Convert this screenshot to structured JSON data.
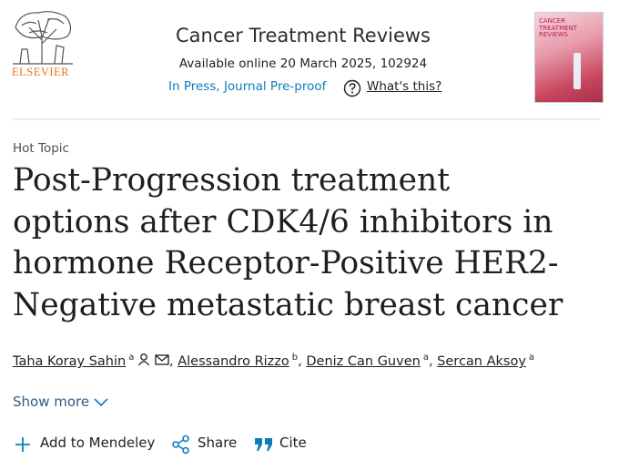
{
  "header": {
    "publisher": "ELSEVIER",
    "journal": "Cancer Treatment Reviews",
    "available": "Available online 20 March 2025, 102924",
    "status": "In Press, Journal Pre-proof",
    "whats_this": "What's this?",
    "cover_title": [
      "CANCER",
      "TREATMENT",
      "REVIEWS"
    ]
  },
  "article": {
    "type": "Hot Topic",
    "title": "Post-Progression treatment options after CDK4/6 inhibitors in hormone Receptor-Positive HER2-Negative metastatic breast cancer",
    "authors": [
      {
        "name": "Taha Koray Sahin",
        "affiliation": "a"
      },
      {
        "name": "Alessandro Rizzo",
        "affiliation": "b"
      },
      {
        "name": "Deniz Can Guven",
        "affiliation": "a"
      },
      {
        "name": "Sercan Aksoy",
        "affiliation": "a"
      }
    ],
    "author_separator": ",",
    "show_more": "Show more"
  },
  "actions": [
    "Add to Mendeley",
    "Share",
    "Cite"
  ]
}
